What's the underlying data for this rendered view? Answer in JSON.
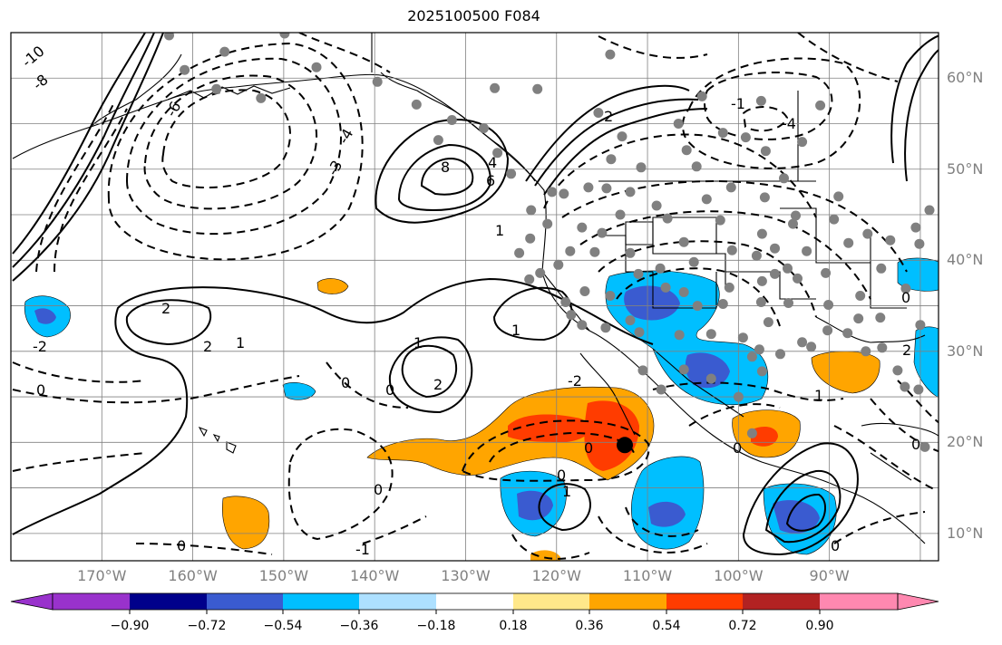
{
  "title": "2025100500 F084",
  "map": {
    "projection": "cylindrical",
    "lon_range": [
      -180,
      -78
    ],
    "lat_range": [
      7,
      65
    ],
    "lat_labels": [
      {
        "value": 60,
        "text": "60°N"
      },
      {
        "value": 50,
        "text": "50°N"
      },
      {
        "value": 40,
        "text": "40°N"
      },
      {
        "value": 30,
        "text": "30°N"
      },
      {
        "value": 20,
        "text": "20°N"
      },
      {
        "value": 10,
        "text": "10°N"
      }
    ],
    "lon_labels": [
      {
        "value": -170,
        "text": "170°W"
      },
      {
        "value": -160,
        "text": "160°W"
      },
      {
        "value": -150,
        "text": "150°W"
      },
      {
        "value": -140,
        "text": "140°W"
      },
      {
        "value": -130,
        "text": "130°W"
      },
      {
        "value": -120,
        "text": "120°W"
      },
      {
        "value": -110,
        "text": "110°W"
      },
      {
        "value": -100,
        "text": "100°W"
      },
      {
        "value": -90,
        "text": "90°W"
      }
    ],
    "contour_labels": [
      "-10",
      "-8",
      "-6",
      "-4",
      "-3",
      "-2",
      "-1",
      "0",
      "1",
      "2",
      "4",
      "6",
      "8"
    ],
    "marker": {
      "lon": -112.5,
      "lat": 19.7,
      "label": "black dot"
    }
  },
  "colorbar": {
    "ticks": [
      "−0.90",
      "−0.72",
      "−0.54",
      "−0.36",
      "−0.18",
      "0.18",
      "0.36",
      "0.54",
      "0.72",
      "0.90"
    ],
    "colors": [
      "#9932cc",
      "#00008b",
      "#3a5bd0",
      "#00bfff",
      "#ade0ff",
      "#ffffff",
      "#ffe88a",
      "#ffa500",
      "#ff3c00",
      "#b22222",
      "#ff88b0"
    ]
  },
  "colors": {
    "grid": "#808080",
    "contour": "#000000",
    "station": "#808080",
    "orange": "#ffa500",
    "red": "#ff3c00",
    "sky": "#00bfff",
    "royal": "#3a5bd0"
  }
}
